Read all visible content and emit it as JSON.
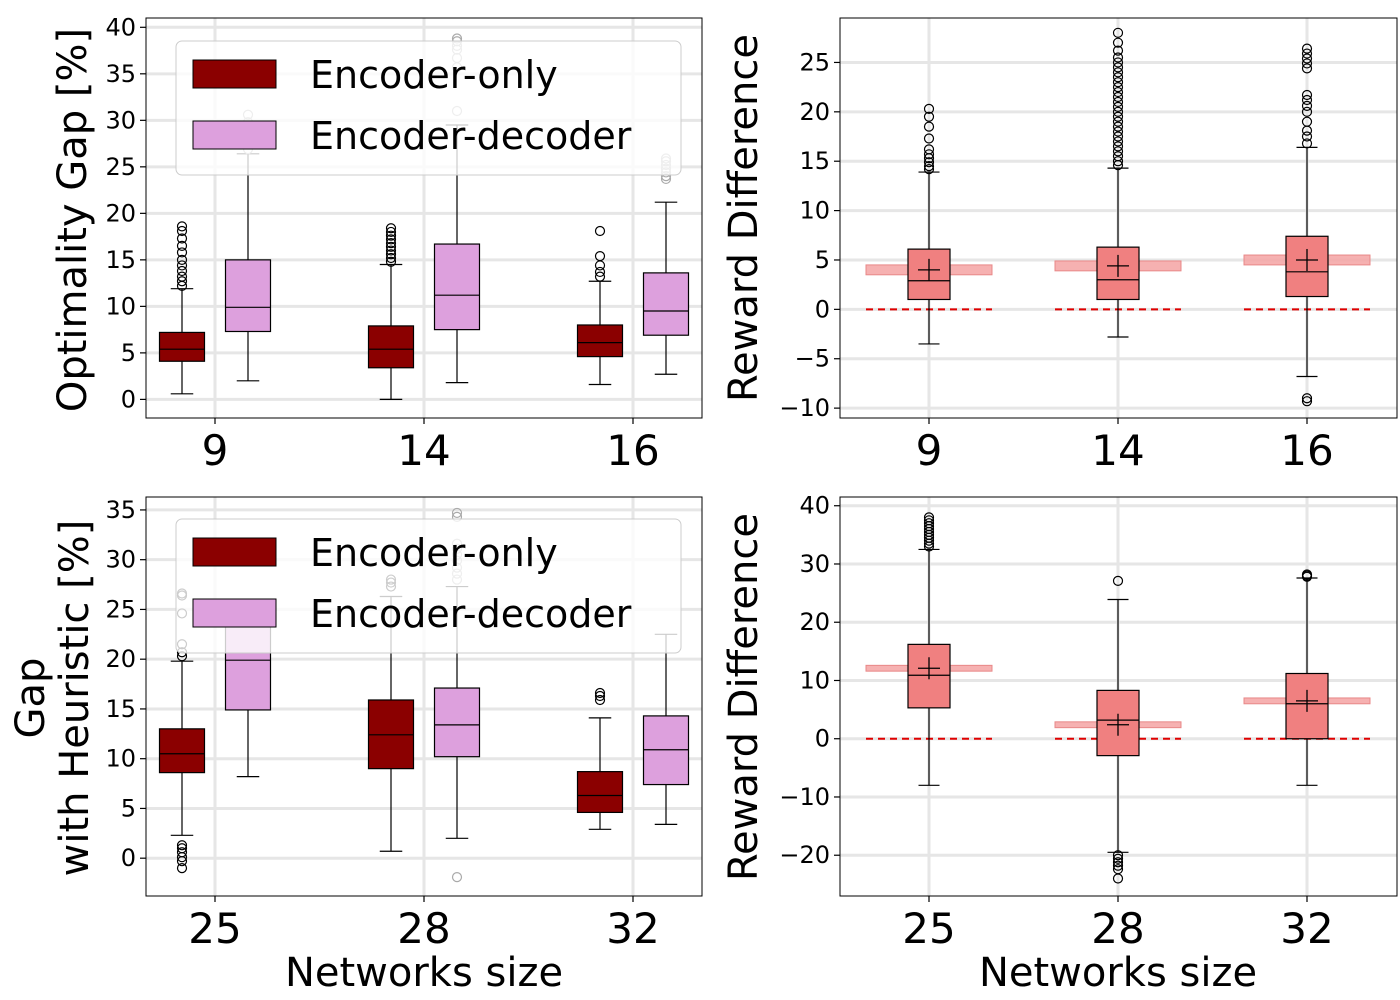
{
  "figure": {
    "colors": {
      "encoder_only": "#8b0000",
      "encoder_decoder": "#dda0dd",
      "reward_box": "#f08080",
      "mean_band": "#f4a3a3",
      "zero_line": "#e00000",
      "grid": "#e6e6e6"
    }
  },
  "chart_data": [
    {
      "id": "top-left",
      "type": "box",
      "xlabel": "",
      "ylabel": "Optimality Gap [%]",
      "ylim": [
        -2,
        41
      ],
      "yticks": [
        0,
        5,
        10,
        15,
        20,
        25,
        30,
        35,
        40
      ],
      "categories": [
        "9",
        "14",
        "16"
      ],
      "legend": {
        "position": "upper-left",
        "entries": [
          {
            "label": "Encoder-only",
            "color": "#8b0000"
          },
          {
            "label": "Encoder-decoder",
            "color": "#dda0dd"
          }
        ]
      },
      "series": [
        {
          "name": "Encoder-only",
          "color": "#8b0000",
          "boxes": [
            {
              "whislo": 0.6,
              "q1": 4.1,
              "med": 5.4,
              "q3": 7.2,
              "whishi": 11.9,
              "fliers": [
                12.2,
                12.7,
                13.2,
                13.8,
                14.4,
                15.0,
                15.8,
                16.5,
                17.3,
                18.1,
                18.6
              ]
            },
            {
              "whislo": 0.0,
              "q1": 3.4,
              "med": 5.4,
              "q3": 7.9,
              "whishi": 14.5,
              "fliers": [
                14.8,
                15.2,
                15.6,
                16.0,
                16.4,
                16.8,
                17.2,
                17.6,
                18.0,
                18.4
              ]
            },
            {
              "whislo": 1.6,
              "q1": 4.6,
              "med": 6.1,
              "q3": 8.0,
              "whishi": 12.7,
              "fliers": [
                13.2,
                13.7,
                14.4,
                15.4,
                18.1
              ]
            }
          ]
        },
        {
          "name": "Encoder-decoder",
          "color": "#dda0dd",
          "boxes": [
            {
              "whislo": 2.0,
              "q1": 7.3,
              "med": 9.9,
              "q3": 15.0,
              "whishi": 26.4,
              "fliers": [
                26.9,
                27.6,
                28.3,
                29.0,
                29.8,
                30.6
              ]
            },
            {
              "whislo": 1.8,
              "q1": 7.5,
              "med": 11.2,
              "q3": 16.7,
              "whishi": 29.5,
              "fliers": [
                31.0,
                35.7,
                36.7,
                37.6,
                38.0,
                38.5,
                38.8
              ]
            },
            {
              "whislo": 2.7,
              "q1": 6.9,
              "med": 9.5,
              "q3": 13.6,
              "whishi": 21.2,
              "fliers": [
                23.7,
                24.0,
                24.4,
                24.8,
                25.2,
                25.6,
                25.9
              ]
            }
          ]
        }
      ]
    },
    {
      "id": "top-right",
      "type": "box",
      "xlabel": "",
      "ylabel": "Reward Difference",
      "ylim": [
        -11,
        29.5
      ],
      "yticks": [
        -10,
        -5,
        0,
        5,
        10,
        15,
        20,
        25
      ],
      "categories": [
        "9",
        "14",
        "16"
      ],
      "series": [
        {
          "name": "Reward difference",
          "color": "#f08080",
          "boxes": [
            {
              "whislo": -3.5,
              "q1": 1.0,
              "med": 2.9,
              "q3": 6.1,
              "whishi": 13.9,
              "mean": 4.0,
              "fliers": [
                14.2,
                14.5,
                14.9,
                15.3,
                15.7,
                16.2,
                17.3,
                18.5,
                19.5,
                20.3
              ]
            },
            {
              "whislo": -2.8,
              "q1": 1.0,
              "med": 3.0,
              "q3": 6.3,
              "whishi": 14.3,
              "mean": 4.4,
              "fliers": [
                14.6,
                15.0,
                15.5,
                16.0,
                16.5,
                17.0,
                17.5,
                18.0,
                18.5,
                19.0,
                19.5,
                20.0,
                20.5,
                21.0,
                21.5,
                22.0,
                22.5,
                23.0,
                23.5,
                24.0,
                24.5,
                25.0,
                25.5,
                26.2,
                27.0,
                28.0
              ]
            },
            {
              "whislo": -6.8,
              "q1": 1.3,
              "med": 3.8,
              "q3": 7.4,
              "whishi": 16.4,
              "mean": 5.0,
              "fliers": [
                16.8,
                17.5,
                18.1,
                19.0,
                20.0,
                20.6,
                21.2,
                21.7,
                24.4,
                24.9,
                25.4,
                25.9,
                26.4,
                -9.0,
                -9.3
              ]
            }
          ]
        }
      ]
    },
    {
      "id": "bottom-left",
      "type": "box",
      "xlabel": "Networks size",
      "ylabel": [
        "Gap",
        "with Heuristic [%]"
      ],
      "ylim": [
        -3.8,
        36.3
      ],
      "yticks": [
        0,
        5,
        10,
        15,
        20,
        25,
        30,
        35
      ],
      "categories": [
        "25",
        "28",
        "32"
      ],
      "legend": {
        "position": "upper-left",
        "entries": [
          {
            "label": "Encoder-only",
            "color": "#8b0000"
          },
          {
            "label": "Encoder-decoder",
            "color": "#dda0dd"
          }
        ]
      },
      "series": [
        {
          "name": "Encoder-only",
          "color": "#8b0000",
          "boxes": [
            {
              "whislo": 2.3,
              "q1": 8.6,
              "med": 10.5,
              "q3": 13.0,
              "whishi": 19.8,
              "fliers": [
                20.3,
                20.7,
                21.5,
                24.6,
                26.4,
                26.6,
                1.3,
                1.0,
                0.6,
                0.1,
                -0.3,
                -1.0
              ]
            },
            {
              "whislo": 0.7,
              "q1": 9.0,
              "med": 12.4,
              "q3": 15.9,
              "whishi": 26.3,
              "fliers": [
                27.3,
                27.7,
                28.0
              ]
            },
            {
              "whislo": 2.9,
              "q1": 4.6,
              "med": 6.3,
              "q3": 8.7,
              "whishi": 14.1,
              "fliers": [
                15.9,
                16.3,
                16.6
              ]
            }
          ]
        },
        {
          "name": "Encoder-decoder",
          "color": "#dda0dd",
          "boxes": [
            {
              "whislo": 8.2,
              "q1": 14.9,
              "med": 19.9,
              "q3": 24.0,
              "whishi": 24.5,
              "fliers": []
            },
            {
              "whislo": 2.0,
              "q1": 10.2,
              "med": 13.4,
              "q3": 17.1,
              "whishi": 27.3,
              "fliers": [
                28.0,
                28.6,
                29.2,
                29.9,
                30.5,
                31.1,
                31.6,
                34.3,
                34.7,
                -1.9
              ]
            },
            {
              "whislo": 3.4,
              "q1": 7.4,
              "med": 10.9,
              "q3": 14.3,
              "whishi": 22.5,
              "fliers": []
            }
          ]
        }
      ]
    },
    {
      "id": "bottom-right",
      "type": "box",
      "xlabel": "Networks size",
      "ylabel": "Reward Difference",
      "ylim": [
        -27,
        41.5
      ],
      "yticks": [
        -20,
        -10,
        0,
        10,
        20,
        30,
        40
      ],
      "categories": [
        "25",
        "28",
        "32"
      ],
      "series": [
        {
          "name": "Reward difference",
          "color": "#f08080",
          "boxes": [
            {
              "whislo": -8.0,
              "q1": 5.3,
              "med": 10.9,
              "q3": 16.2,
              "whishi": 32.5,
              "mean": 12.1,
              "fliers": [
                33.0,
                33.5,
                34.0,
                34.5,
                35.0,
                35.5,
                36.0,
                36.5,
                37.0,
                37.5,
                38.0
              ]
            },
            {
              "whislo": -19.5,
              "q1": -2.9,
              "med": 3.2,
              "q3": 8.3,
              "whishi": 23.9,
              "mean": 2.4,
              "fliers": [
                27.1,
                -20.0,
                -20.6,
                -21.2,
                -21.8,
                -22.4,
                -24.0
              ]
            },
            {
              "whislo": -8.0,
              "q1": 0.0,
              "med": 6.0,
              "q3": 11.2,
              "whishi": 27.6,
              "mean": 6.5,
              "fliers": [
                27.8,
                28.0,
                28.2
              ]
            }
          ]
        }
      ]
    }
  ]
}
